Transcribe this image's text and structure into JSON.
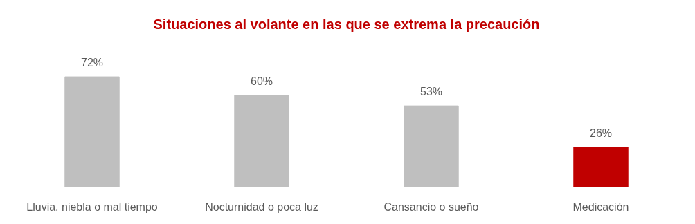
{
  "chart_data": {
    "type": "bar",
    "title": "Situaciones al volante en las que se extrema la precaución",
    "categories": [
      "Lluvia, niebla o mal tiempo",
      "Nocturnidad o poca luz",
      "Cansancio o sueño",
      "Medicación"
    ],
    "values": [
      72,
      60,
      53,
      26
    ],
    "colors": [
      "#bfbfbf",
      "#bfbfbf",
      "#bfbfbf",
      "#c00000"
    ],
    "value_labels": [
      "72%",
      "60%",
      "53%",
      "26%"
    ],
    "grid": false
  }
}
